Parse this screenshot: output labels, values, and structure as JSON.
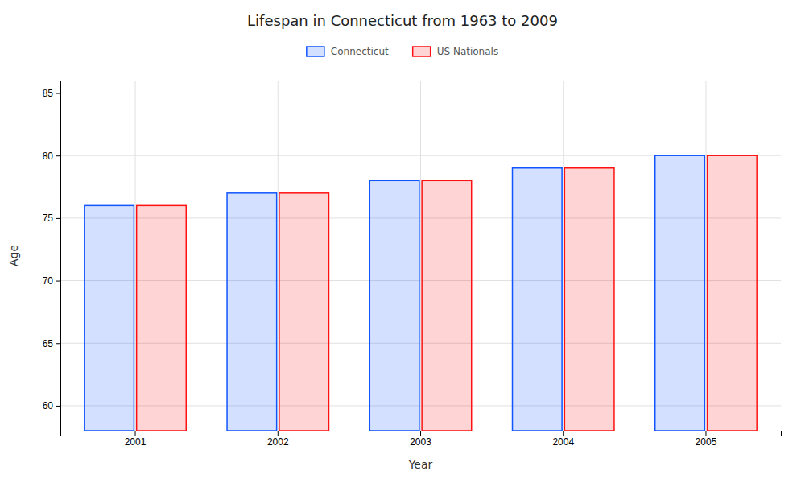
{
  "chart_data": {
    "type": "bar",
    "title": "Lifespan in Connecticut from 1963 to 2009",
    "xlabel": "Year",
    "ylabel": "Age",
    "categories": [
      "2001",
      "2002",
      "2003",
      "2004",
      "2005"
    ],
    "series": [
      {
        "name": "Connecticut",
        "color": "#1155ff",
        "values": [
          76,
          77,
          78,
          79,
          80
        ]
      },
      {
        "name": "US Nationals",
        "color": "#ff1111",
        "values": [
          76,
          77,
          78,
          79,
          80
        ]
      }
    ],
    "ylim": [
      58,
      86
    ],
    "yticks": [
      60,
      65,
      70,
      75,
      80,
      85
    ],
    "grid": true,
    "legend": "top"
  }
}
